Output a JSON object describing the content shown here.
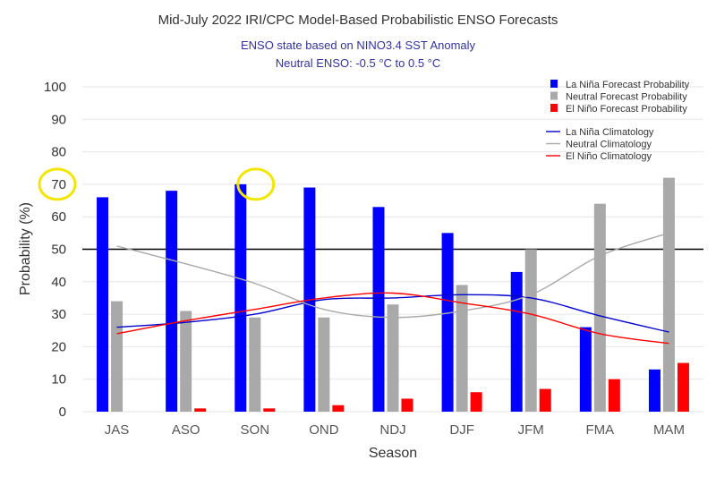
{
  "chart_data": {
    "type": "bar",
    "title": "Mid-July 2022 IRI/CPC Model-Based Probabilistic ENSO Forecasts",
    "subtitle_lines": [
      "ENSO state based on NINO3.4 SST Anomaly",
      "Neutral ENSO: -0.5 °C to 0.5 °C"
    ],
    "xlabel": "Season",
    "ylabel": "Probability (%)",
    "ylim": [
      0,
      100
    ],
    "yticks": [
      0,
      10,
      20,
      30,
      40,
      50,
      60,
      70,
      80,
      90,
      100
    ],
    "reference_line": 50,
    "grid": "horizontal",
    "legend_position": "top-right",
    "categories": [
      "JAS",
      "ASO",
      "SON",
      "OND",
      "NDJ",
      "DJF",
      "JFM",
      "FMA",
      "MAM"
    ],
    "series": [
      {
        "name": "La Niña Forecast Probability",
        "color": "#0000ff",
        "values": [
          66,
          68,
          70,
          69,
          63,
          55,
          43,
          26,
          13
        ]
      },
      {
        "name": "Neutral Forecast Probability",
        "color": "#a9a9a9",
        "values": [
          34,
          31,
          29,
          29,
          33,
          39,
          50,
          64,
          72
        ]
      },
      {
        "name": "El Niño Forecast Probability",
        "color": "#ff0000",
        "values": [
          0,
          1,
          1,
          2,
          4,
          6,
          7,
          10,
          15
        ]
      }
    ],
    "climatology": [
      {
        "name": "La Niña Climatology",
        "color": "#0000cc",
        "values": [
          26,
          27.5,
          30,
          34.5,
          35,
          36,
          35,
          29.5,
          24.5
        ]
      },
      {
        "name": "Neutral Climatology",
        "color": "#a9a9a9",
        "values": [
          51,
          45.5,
          39.5,
          31.5,
          29,
          31,
          36,
          48,
          55
        ]
      },
      {
        "name": "El Niño Climatology",
        "color": "#ff0000",
        "values": [
          24,
          28,
          31.5,
          35,
          36.5,
          33.5,
          30,
          24,
          21
        ]
      }
    ],
    "highlighted_points": [
      {
        "label": "70",
        "kind": "y-axis tick"
      },
      {
        "category": "SON",
        "series": "La Niña Forecast Probability",
        "value": 70
      }
    ]
  }
}
